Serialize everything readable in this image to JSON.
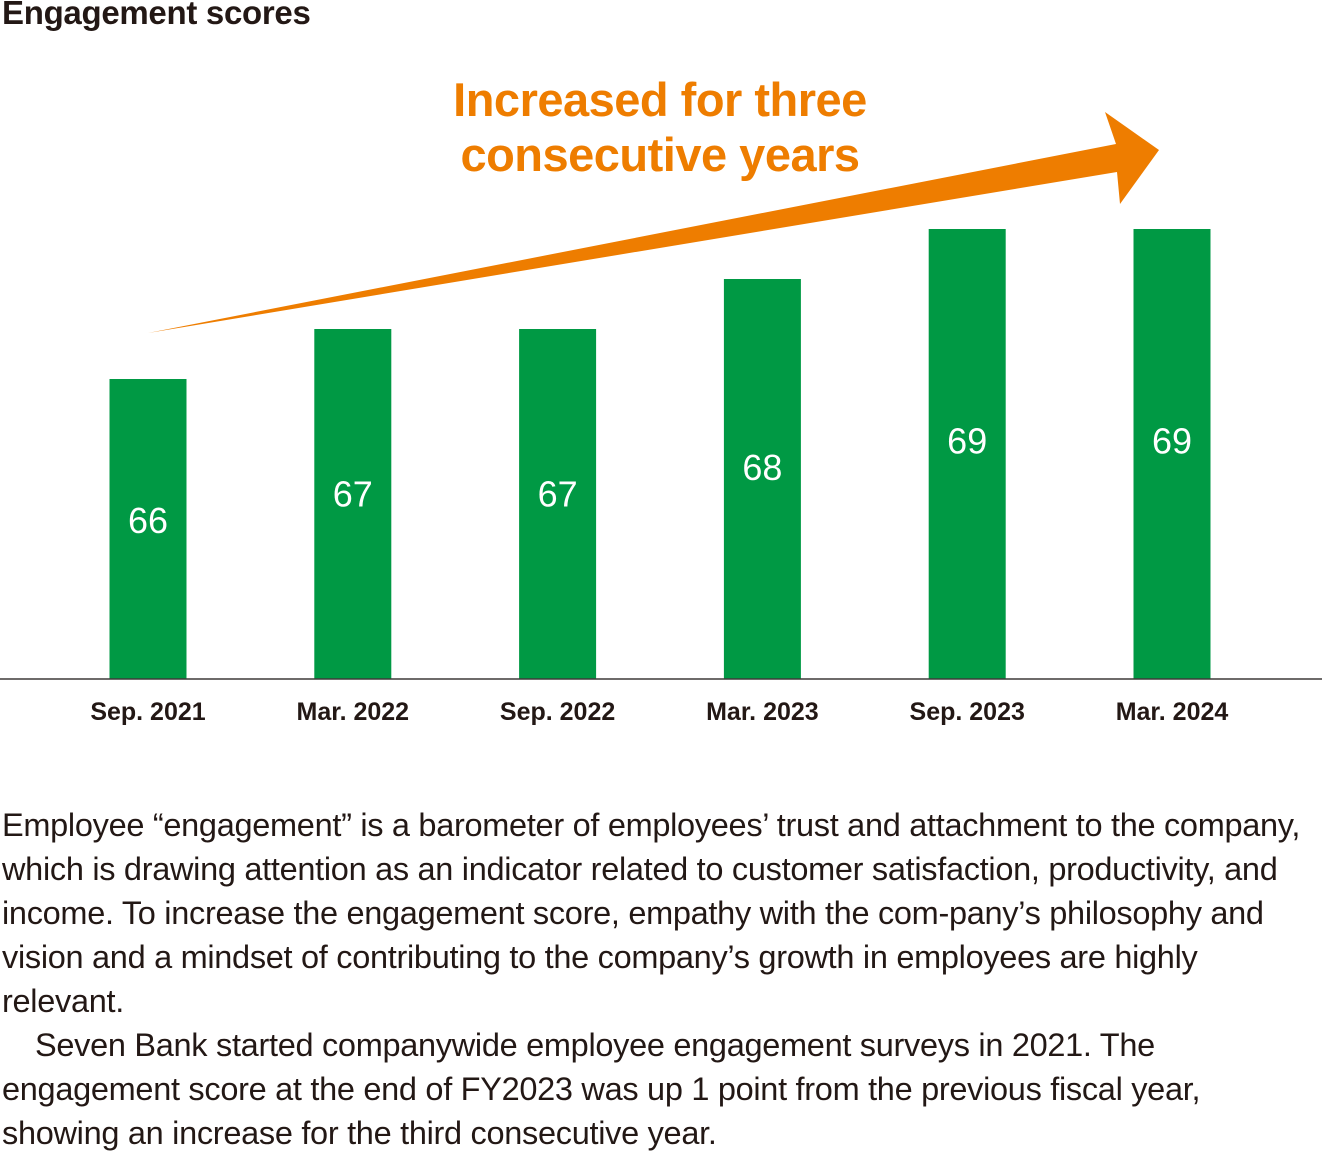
{
  "chart_data": {
    "type": "bar",
    "title": "Engagement scores",
    "categories": [
      "Sep. 2021",
      "Mar. 2022",
      "Sep. 2022",
      "Mar. 2023",
      "Sep. 2023",
      "Mar. 2024"
    ],
    "values": [
      66,
      67,
      67,
      68,
      69,
      69
    ],
    "annotation": "Increased for three consecutive years",
    "bar_color": "#009944",
    "annotation_color": "#ee7d00",
    "value_label_color": "#ffffff",
    "grid": false,
    "legend": "none"
  },
  "description": {
    "paragraphs": [
      "Employee “engagement” is a barometer of employees’ trust and attachment to the company, which is drawing attention as an indicator related to customer satisfaction, productivity, and income. To increase the engagement score, empathy with the com-pany’s philosophy and vision and a mindset of contributing to the company’s growth in employees are highly relevant.",
      "Seven Bank started companywide employee engagement surveys in 2021. The engagement score at the end of FY2023 was up 1 point from the previous fiscal year, showing an increase for the third consecutive year."
    ]
  }
}
